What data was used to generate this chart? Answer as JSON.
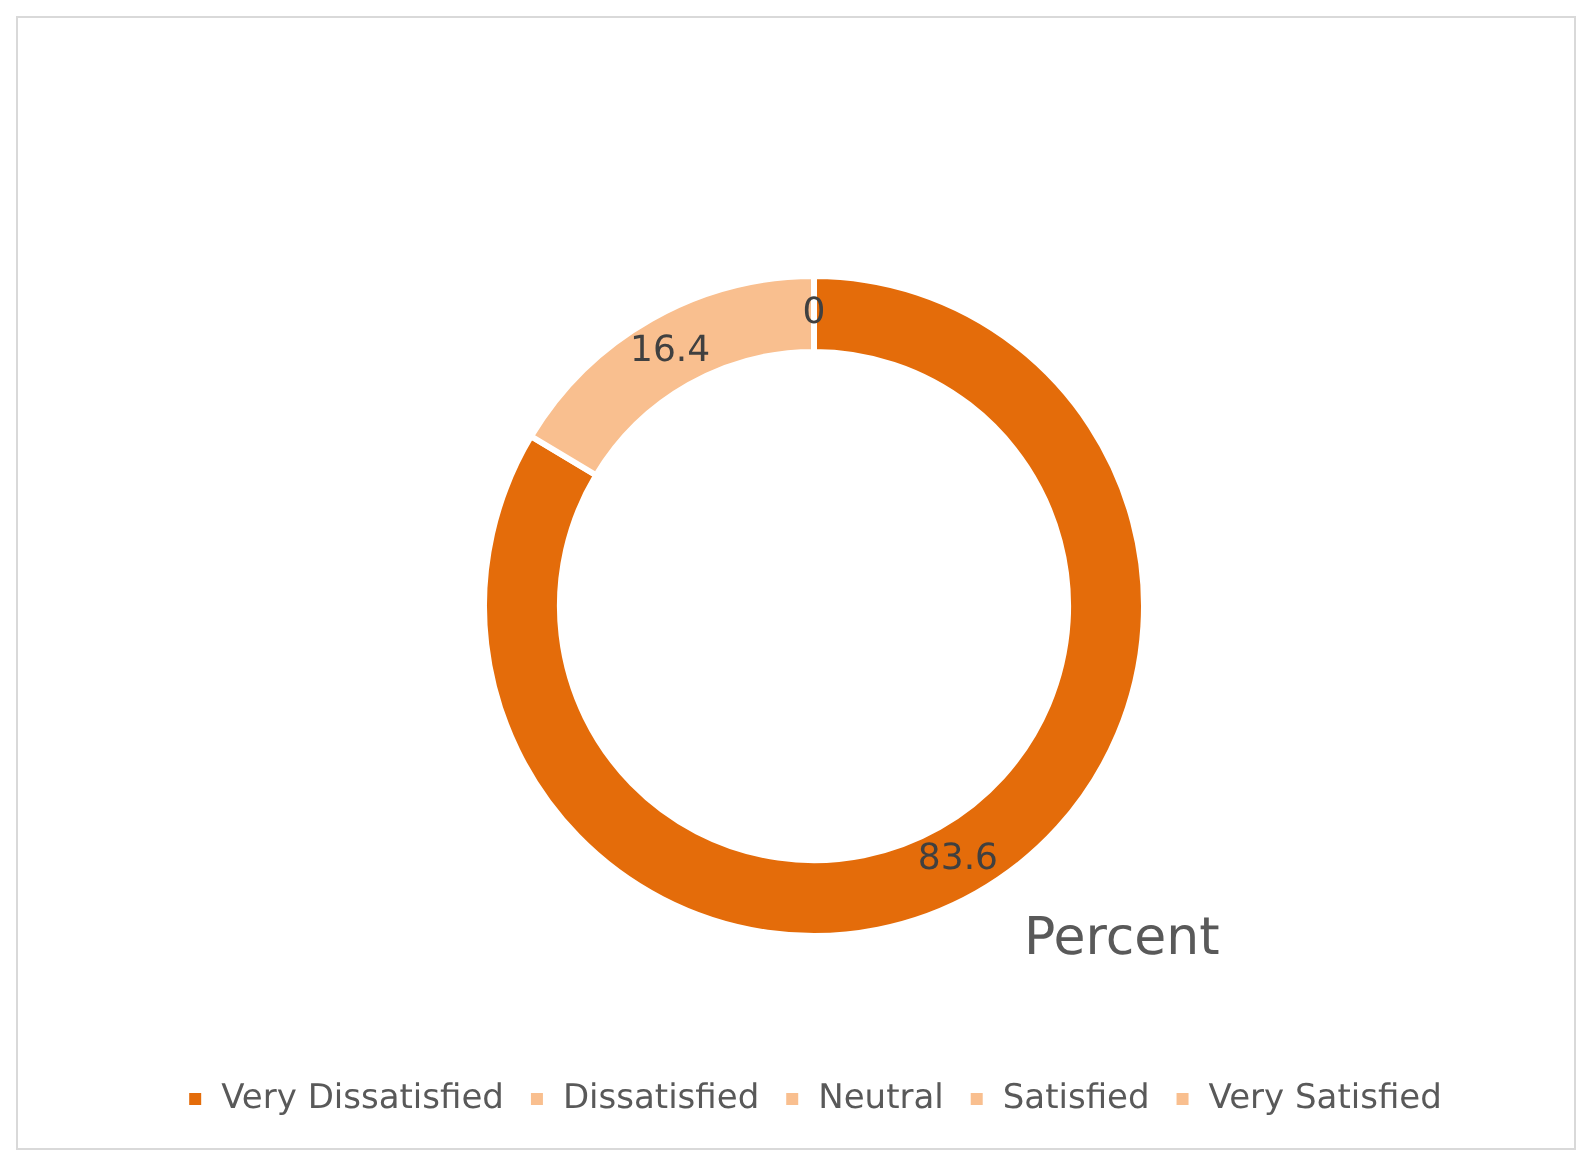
{
  "chart_data": {
    "type": "donut",
    "title": "Percent",
    "categories": [
      "Very Dissatisfied",
      "Dissatisfied",
      "Neutral",
      "Satisfied",
      "Very Satisfied"
    ],
    "values": [
      83.6,
      16.4,
      0,
      0,
      0
    ],
    "colors": [
      "#e46c0a",
      "#f9bf8f",
      "#f9bf8f",
      "#f9bf8f",
      "#f9bf8f"
    ],
    "value_labels": [
      "83.6",
      "16.4",
      "0",
      null,
      null
    ],
    "legend": "bottom"
  }
}
